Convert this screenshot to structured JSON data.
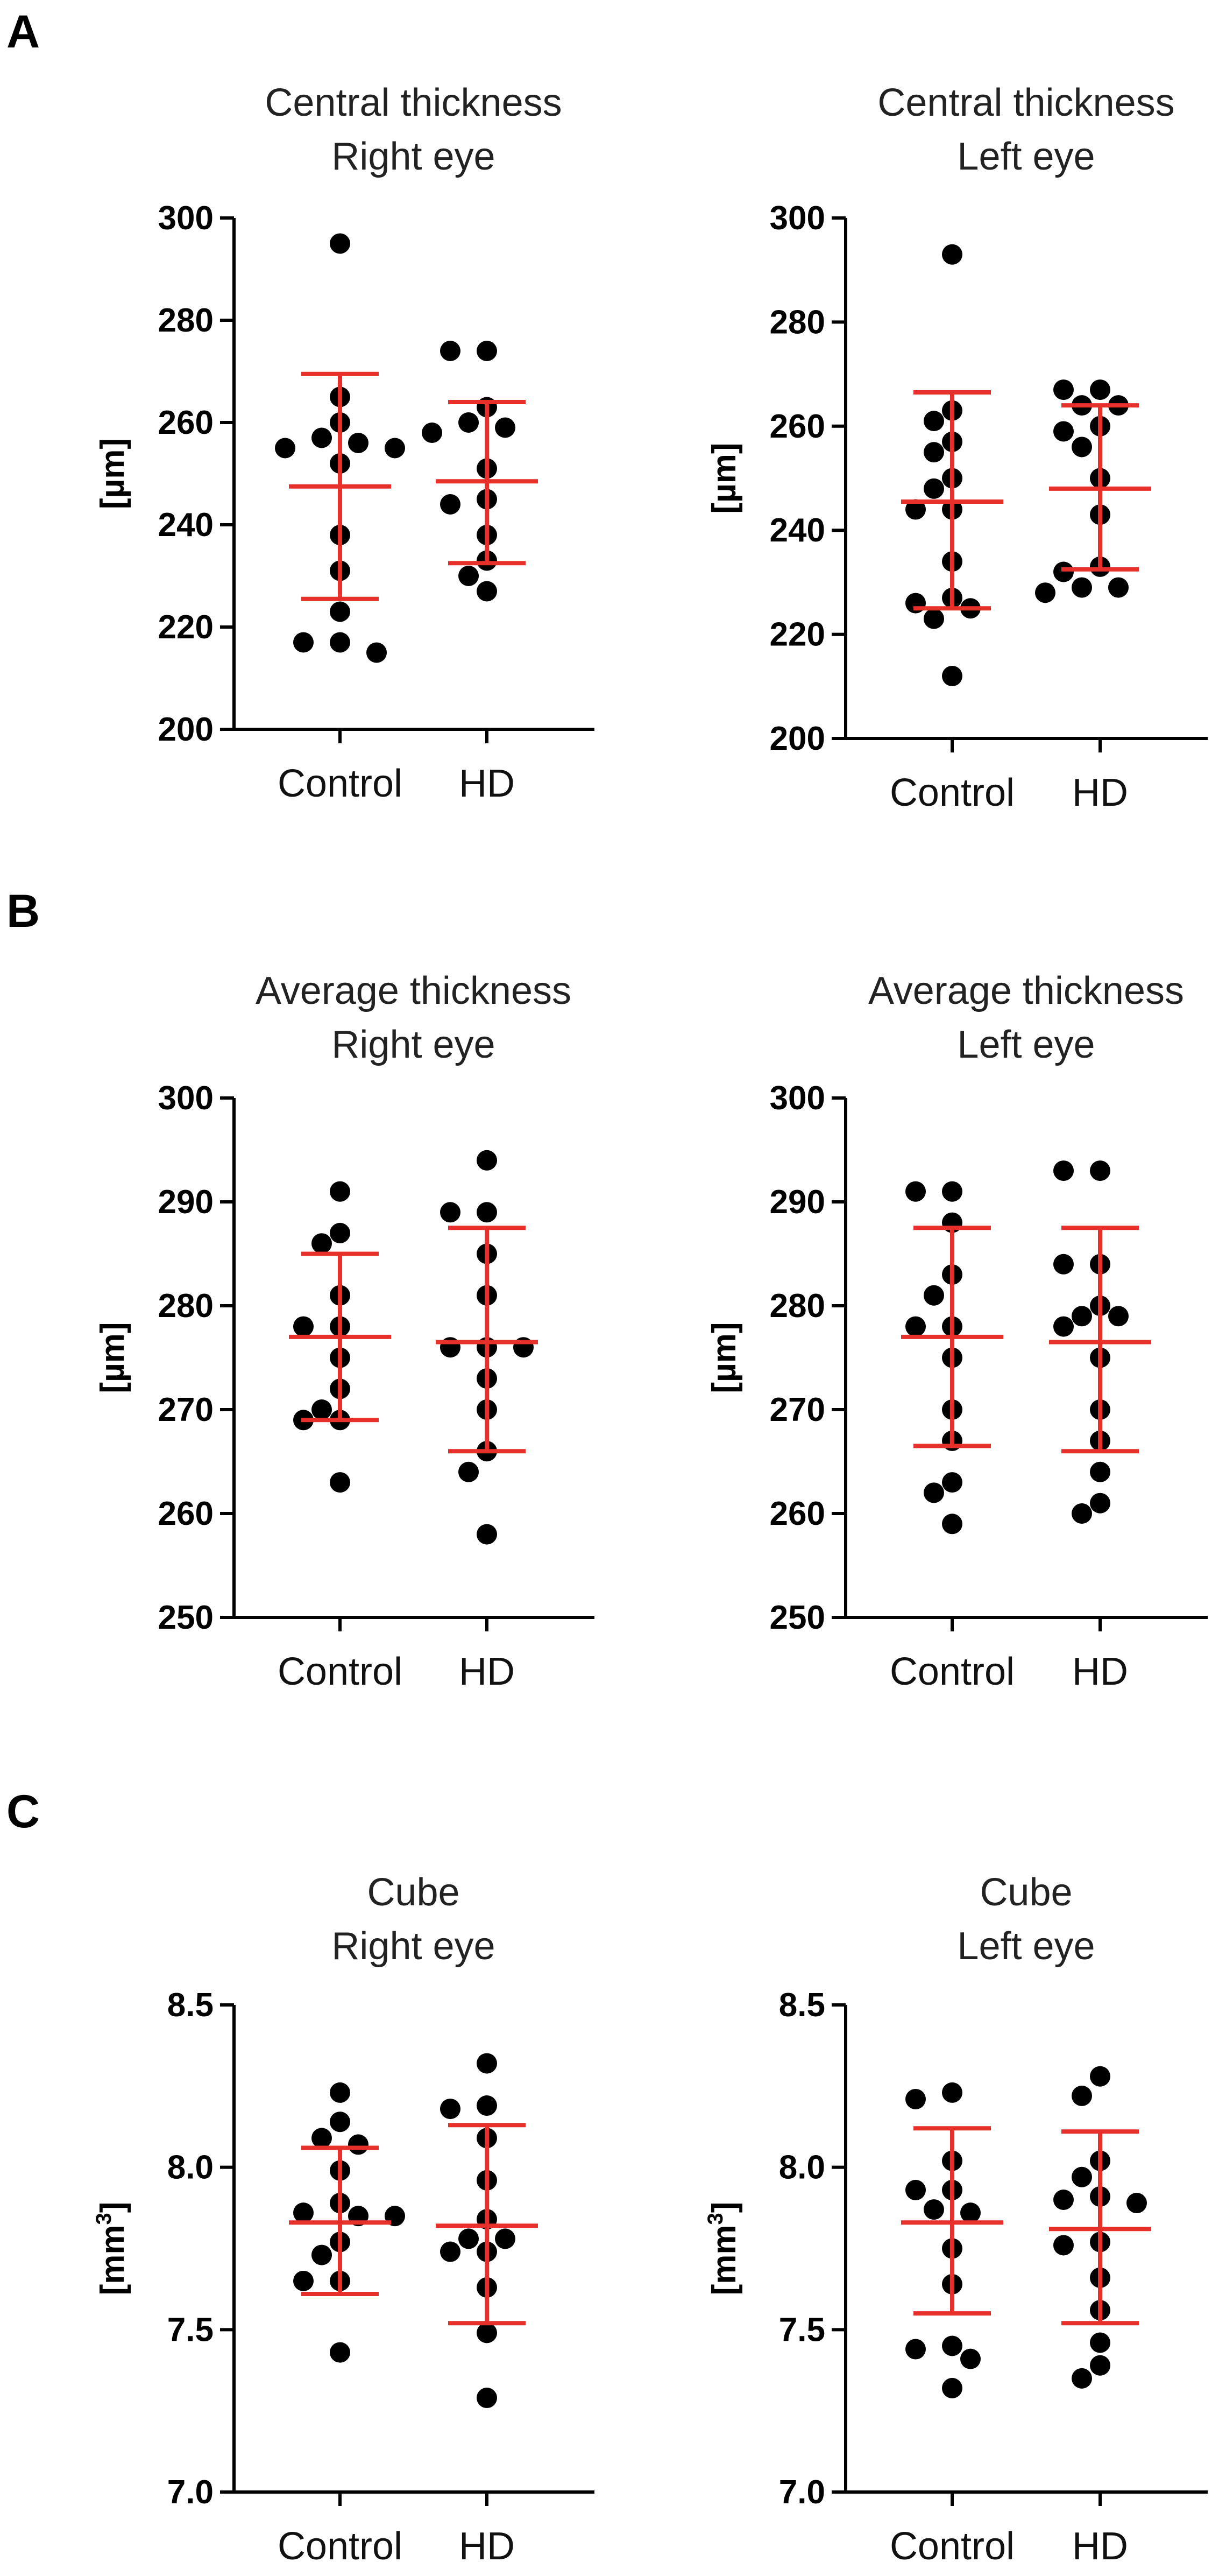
{
  "figure": {
    "panel_letters": [
      "A",
      "B",
      "C"
    ]
  },
  "colors": {
    "dots": "#000000",
    "error_bars": "#e8302a",
    "axes": "#000000"
  },
  "chart_data": [
    {
      "panel": "A",
      "type": "scatter",
      "title": [
        "Central thickness",
        "Right eye"
      ],
      "ylabel": "[µm]",
      "ylabel_sup": "",
      "ylim": [
        200,
        300
      ],
      "yticks": [
        200,
        220,
        240,
        260,
        280,
        300
      ],
      "yticklabels": [
        "200",
        "220",
        "240",
        "260",
        "280",
        "300"
      ],
      "categories": [
        "Control",
        "HD"
      ],
      "series": [
        {
          "name": "Control",
          "values": [
            295,
            265,
            260,
            257,
            256,
            255,
            255,
            252,
            238,
            231,
            223,
            217,
            217,
            215
          ],
          "mean": 247.5,
          "sd_low": 225.5,
          "sd_high": 269.5
        },
        {
          "name": "HD",
          "values": [
            274,
            274,
            263,
            260,
            259,
            258,
            251,
            245,
            244,
            238,
            233,
            230,
            227
          ],
          "mean": 248.5,
          "sd_low": 232.5,
          "sd_high": 264.0
        }
      ]
    },
    {
      "panel": "A",
      "type": "scatter",
      "title": [
        "Central thickness",
        "Left eye"
      ],
      "ylabel": "[µm]",
      "ylabel_sup": "",
      "ylim": [
        200,
        300
      ],
      "yticks": [
        200,
        220,
        240,
        260,
        280,
        300
      ],
      "yticklabels": [
        "200",
        "220",
        "240",
        "260",
        "280",
        "300"
      ],
      "categories": [
        "Control",
        "HD"
      ],
      "series": [
        {
          "name": "Control",
          "values": [
            293,
            263,
            261,
            257,
            255,
            250,
            248,
            244,
            244,
            234,
            227,
            226,
            225,
            223,
            212
          ],
          "mean": 245.5,
          "sd_low": 225.0,
          "sd_high": 266.5
        },
        {
          "name": "HD",
          "values": [
            267,
            267,
            264,
            264,
            260,
            259,
            256,
            250,
            243,
            233,
            232,
            229,
            229,
            228
          ],
          "mean": 248.0,
          "sd_low": 232.5,
          "sd_high": 264.0
        }
      ]
    },
    {
      "panel": "B",
      "type": "scatter",
      "title": [
        "Average thickness",
        "Right eye"
      ],
      "ylabel": "[µm]",
      "ylabel_sup": "",
      "ylim": [
        250,
        300
      ],
      "yticks": [
        250,
        260,
        270,
        280,
        290,
        300
      ],
      "yticklabels": [
        "250",
        "260",
        "270",
        "280",
        "290",
        "300"
      ],
      "categories": [
        "Control",
        "HD"
      ],
      "series": [
        {
          "name": "Control",
          "values": [
            291,
            287,
            286,
            281,
            278,
            278,
            275,
            272,
            270,
            269,
            269,
            263
          ],
          "mean": 277.0,
          "sd_low": 269.0,
          "sd_high": 285.0
        },
        {
          "name": "HD",
          "values": [
            294,
            289,
            289,
            285,
            281,
            276,
            276,
            276,
            273,
            270,
            266,
            264,
            258
          ],
          "mean": 276.5,
          "sd_low": 266.0,
          "sd_high": 287.5
        }
      ]
    },
    {
      "panel": "B",
      "type": "scatter",
      "title": [
        "Average thickness",
        "Left eye"
      ],
      "ylabel": "[µm]",
      "ylabel_sup": "",
      "ylim": [
        250,
        300
      ],
      "yticks": [
        250,
        260,
        270,
        280,
        290,
        300
      ],
      "yticklabels": [
        "250",
        "260",
        "270",
        "280",
        "290",
        "300"
      ],
      "categories": [
        "Control",
        "HD"
      ],
      "series": [
        {
          "name": "Control",
          "values": [
            291,
            291,
            288,
            283,
            281,
            278,
            278,
            275,
            270,
            267,
            263,
            262,
            259
          ],
          "mean": 277.0,
          "sd_low": 266.5,
          "sd_high": 287.5
        },
        {
          "name": "HD",
          "values": [
            293,
            293,
            284,
            284,
            280,
            279,
            279,
            278,
            275,
            270,
            267,
            264,
            261,
            260
          ],
          "mean": 276.5,
          "sd_low": 266.0,
          "sd_high": 287.5
        }
      ]
    },
    {
      "panel": "C",
      "type": "scatter",
      "title": [
        "Cube",
        "Right eye"
      ],
      "ylabel": "[mm",
      "ylabel_sup": "3",
      "ylim": [
        7.0,
        8.5
      ],
      "yticks": [
        7.0,
        7.5,
        8.0,
        8.5
      ],
      "yticklabels": [
        "7.0",
        "7.5",
        "8.0",
        "8.5"
      ],
      "categories": [
        "Control",
        "HD"
      ],
      "series": [
        {
          "name": "Control",
          "values": [
            8.23,
            8.14,
            8.09,
            8.07,
            7.99,
            7.89,
            7.86,
            7.85,
            7.85,
            7.77,
            7.73,
            7.65,
            7.65,
            7.43
          ],
          "mean": 7.83,
          "sd_low": 7.61,
          "sd_high": 8.06
        },
        {
          "name": "HD",
          "values": [
            8.32,
            8.19,
            8.18,
            8.09,
            7.96,
            7.84,
            7.78,
            7.78,
            7.74,
            7.74,
            7.63,
            7.49,
            7.29
          ],
          "mean": 7.82,
          "sd_low": 7.52,
          "sd_high": 8.13
        }
      ]
    },
    {
      "panel": "C",
      "type": "scatter",
      "title": [
        "Cube",
        "Left eye"
      ],
      "ylabel": "[mm",
      "ylabel_sup": "3",
      "ylim": [
        7.0,
        8.5
      ],
      "yticks": [
        7.0,
        7.5,
        8.0,
        8.5
      ],
      "yticklabels": [
        "7.0",
        "7.5",
        "8.0",
        "8.5"
      ],
      "categories": [
        "Control",
        "HD"
      ],
      "series": [
        {
          "name": "Control",
          "values": [
            8.23,
            8.21,
            8.02,
            7.93,
            7.93,
            7.87,
            7.86,
            7.75,
            7.64,
            7.45,
            7.44,
            7.41,
            7.32
          ],
          "mean": 7.83,
          "sd_low": 7.55,
          "sd_high": 8.12
        },
        {
          "name": "HD",
          "values": [
            8.28,
            8.22,
            8.02,
            7.97,
            7.91,
            7.9,
            7.89,
            7.77,
            7.76,
            7.66,
            7.56,
            7.46,
            7.39,
            7.35
          ],
          "mean": 7.81,
          "sd_low": 7.52,
          "sd_high": 8.11
        }
      ]
    }
  ]
}
